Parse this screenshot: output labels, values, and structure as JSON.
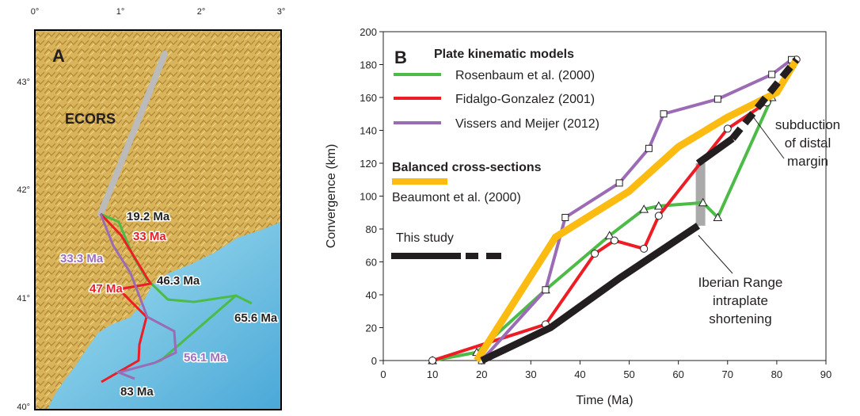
{
  "map": {
    "panel": "A",
    "section": "ECORS",
    "lon_labels": [
      "0°",
      "1°",
      "2°",
      "3°"
    ],
    "lat_labels": [
      "43°",
      "42°",
      "41°",
      "40°"
    ],
    "ages": [
      {
        "label": "19.2 Ma",
        "color": "#222222"
      },
      {
        "label": "33 Ma",
        "color": "#e8202a"
      },
      {
        "label": "33.3 Ma",
        "color": "#a070c0"
      },
      {
        "label": "47 Ma",
        "color": "#e8202a"
      },
      {
        "label": "46.3 Ma",
        "color": "#222222"
      },
      {
        "label": "65.6 Ma",
        "color": "#222222"
      },
      {
        "label": "56.1 Ma",
        "color": "#a070c0"
      },
      {
        "label": "83 Ma",
        "color": "#222222"
      }
    ]
  },
  "chart_data": {
    "type": "line",
    "panel": "B",
    "x_label": "Time (Ma)",
    "y_label": "Convergence (km)",
    "xlim": [
      0,
      90
    ],
    "xticks": [
      0,
      10,
      20,
      30,
      40,
      50,
      60,
      70,
      80,
      90
    ],
    "ylim": [
      0,
      200
    ],
    "yticks": [
      0,
      20,
      40,
      60,
      80,
      100,
      120,
      140,
      160,
      180,
      200
    ],
    "legend_groups": [
      "Plate kinematic models",
      "Balanced cross-sections"
    ],
    "series": [
      {
        "name": "Rosenbaum et al. (2000)",
        "color": "#4cbb47",
        "marker": "triangle",
        "group": 0,
        "x": [
          10,
          19,
          33,
          46,
          53,
          56,
          65,
          68,
          79,
          83
        ],
        "values": [
          0,
          5,
          43,
          76,
          92,
          94,
          96,
          87,
          160,
          180
        ]
      },
      {
        "name": "Fidalgo-Gonzalez (2001)",
        "color": "#ee1c24",
        "marker": "circle",
        "group": 0,
        "x": [
          10,
          33,
          43,
          47,
          53,
          56,
          70,
          78,
          84
        ],
        "values": [
          0,
          22,
          65,
          73,
          68,
          88,
          141,
          157,
          183
        ]
      },
      {
        "name": "Vissers and Meijer (2012)",
        "color": "#9b6bb5",
        "marker": "square",
        "group": 0,
        "x": [
          20,
          33,
          37,
          48,
          54,
          57,
          68,
          79,
          83
        ],
        "values": [
          0,
          43,
          87,
          108,
          129,
          150,
          159,
          174,
          183
        ]
      },
      {
        "name": "Beaumont et al. (2000)",
        "color": "#fbbb10",
        "group": 1,
        "x": [
          19,
          35,
          50,
          60,
          70,
          80,
          84
        ],
        "values": [
          0,
          75,
          103,
          130,
          148,
          163,
          183
        ]
      },
      {
        "name": "This study",
        "color": "#231f20",
        "x": [
          20,
          34,
          48,
          64,
          null,
          64,
          71,
          null,
          71,
          84
        ],
        "values": [
          0,
          20,
          50,
          82,
          null,
          120,
          135,
          null,
          135,
          183
        ],
        "piece_styles": [
          "solid",
          "solid",
          "dashed"
        ]
      }
    ],
    "range_bar": {
      "x": 64.5,
      "low": 82,
      "high": 120,
      "color": "#aaaaaa"
    },
    "annotations": [
      {
        "lines": [
          "subduction",
          "of distal",
          "margin"
        ]
      },
      {
        "lines": [
          "Iberian Range",
          "intraplate",
          "shortening"
        ]
      }
    ]
  }
}
